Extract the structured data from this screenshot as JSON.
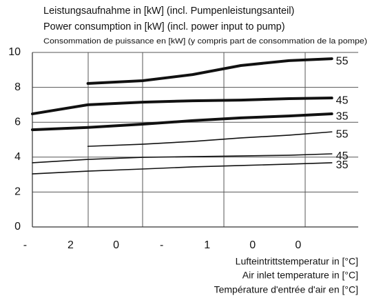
{
  "chart_data": {
    "type": "line",
    "title": "Leistungsaufnahme in [kW] (incl. Pumpenleistungsanteil)",
    "subtitle": "Power consumption in [kW] (incl. power input to pump)",
    "subtitle2": "Consommation de puissance en [kW] (y compris part de consommation de la pompe)",
    "xlabel": [
      "Lufteintrittstemperatur in [°C]",
      "Air inlet temperature in [°C]",
      "Température d'entrée d'air en [°C]"
    ],
    "x": [
      -24.2,
      -18.1,
      -12.1,
      -6.6,
      -1.3,
      4.0,
      8.7
    ],
    "series": [
      {
        "name": "55",
        "color": "#111111",
        "line_width": 4,
        "values": [
          null,
          8.22,
          8.38,
          8.73,
          9.25,
          9.53,
          9.64
        ]
      },
      {
        "name": "45",
        "color": "#111111",
        "line_width": 4,
        "values": [
          6.48,
          7.0,
          7.15,
          7.23,
          7.27,
          7.35,
          7.39
        ]
      },
      {
        "name": "35",
        "color": "#111111",
        "line_width": 4,
        "values": [
          5.57,
          5.7,
          5.89,
          6.09,
          6.25,
          6.36,
          6.48
        ]
      },
      {
        "name": "55",
        "color": "#111111",
        "line_width": 1.6,
        "values": [
          null,
          4.62,
          4.74,
          4.9,
          5.1,
          5.26,
          5.45
        ]
      },
      {
        "name": "45",
        "color": "#111111",
        "line_width": 1.6,
        "values": [
          3.68,
          3.87,
          3.99,
          4.03,
          4.07,
          4.11,
          4.19
        ]
      },
      {
        "name": "35",
        "color": "#111111",
        "line_width": 1.6,
        "values": [
          3.04,
          3.2,
          3.32,
          3.44,
          3.52,
          3.6,
          3.68
        ]
      }
    ],
    "xlim": [
      -24.2,
      11.6
    ],
    "xticks": [
      {
        "value": -25,
        "label": "-"
      },
      {
        "value": -20,
        "label": "2"
      },
      {
        "value": -15,
        "label": "0"
      },
      {
        "value": -10,
        "label": "-"
      },
      {
        "value": -5,
        "label": "1"
      },
      {
        "value": 0,
        "label": "0"
      },
      {
        "value": 5,
        "label": "0"
      }
    ],
    "ylim": [
      0,
      10
    ],
    "yticks": [
      0,
      2,
      4,
      6,
      8,
      10
    ],
    "grid": true
  }
}
